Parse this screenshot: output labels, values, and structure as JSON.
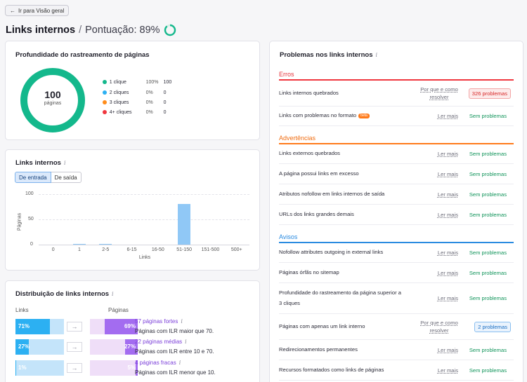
{
  "nav": {
    "back_label": "Ir para Visão geral"
  },
  "header": {
    "title": "Links internos",
    "separator": "/",
    "score_label": "Pontuação: 89%",
    "score_value": 89
  },
  "depth": {
    "title": "Profundidade do rastreamento de páginas",
    "donut_value": "100",
    "donut_unit": "páginas",
    "legend": [
      {
        "label": "1 clique",
        "pct": "100%",
        "count": "100",
        "color": "#14b88c"
      },
      {
        "label": "2 cliques",
        "pct": "0%",
        "count": "0",
        "color": "#2cb0f2"
      },
      {
        "label": "3 cliques",
        "pct": "0%",
        "count": "0",
        "color": "#ff8c1a"
      },
      {
        "label": "4+ cliques",
        "pct": "0%",
        "count": "0",
        "color": "#f0373f"
      }
    ]
  },
  "internal_links": {
    "title": "Links internos",
    "tabs": [
      {
        "label": "De entrada"
      },
      {
        "label": "De saída"
      }
    ],
    "ylabel": "Páginas",
    "xlabel": "Links"
  },
  "chart_data": {
    "type": "bar",
    "categories": [
      "0",
      "1",
      "2-5",
      "6-15",
      "16-50",
      "51-150",
      "151-500",
      "500+"
    ],
    "values": [
      0,
      2,
      2,
      0,
      0,
      80,
      0,
      0
    ],
    "xlabel": "Links",
    "ylabel": "Páginas",
    "yticks": [
      "100",
      "50",
      "0"
    ],
    "ylim": [
      0,
      100
    ],
    "grid": true
  },
  "distribution": {
    "title": "Distribuição de links internos",
    "col_links": "Links",
    "col_pages": "Páginas",
    "rows": [
      {
        "links_pct": "71%",
        "links_val": 71,
        "pages_pct": "69%",
        "pages_val": 69,
        "link": "57 páginas fortes",
        "desc": "Páginas com ILR maior que 70."
      },
      {
        "links_pct": "27%",
        "links_val": 27,
        "pages_pct": "27%",
        "pages_val": 27,
        "link": "22 páginas médias",
        "desc": "Páginas com ILR entre 10 e 70."
      },
      {
        "links_pct": "1%",
        "links_val": 1,
        "pages_pct": "5%",
        "pages_val": 5,
        "link": "4 páginas fracas",
        "desc": "Páginas com ILR menor que 10."
      }
    ]
  },
  "problems": {
    "title": "Problemas nos links internos",
    "why_label": "Por que e como resolver",
    "learn_label": "Ler mais",
    "ok_label": "Sem problemas",
    "beta_label": "beta",
    "errors": {
      "label": "Erros",
      "color": "#f0373f",
      "items": [
        {
          "name": "Links internos quebrados",
          "pill": "326 problemas"
        },
        {
          "name": "Links com problemas no formato"
        }
      ]
    },
    "warnings": {
      "label": "Advertências",
      "color": "#ff7a1a",
      "items": [
        {
          "name": "Links externos quebrados"
        },
        {
          "name": "A página possui links em excesso"
        },
        {
          "name": "Atributos nofollow em links internos de saída"
        },
        {
          "name": "URLs dos links grandes demais"
        }
      ]
    },
    "notices": {
      "label": "Avisos",
      "color": "#2a8be0",
      "items": [
        {
          "name": "Nofollow attributes outgoing in external links"
        },
        {
          "name": "Páginas órfãs no sitemap"
        },
        {
          "name": "Profundidade do rastreamento da página superior a 3 cliques"
        },
        {
          "name": "Páginas com apenas um link interno",
          "pill": "2 problemas"
        },
        {
          "name": "Redirecionamentos permanentes"
        },
        {
          "name": "Recursos formatados como links de páginas"
        }
      ]
    }
  }
}
